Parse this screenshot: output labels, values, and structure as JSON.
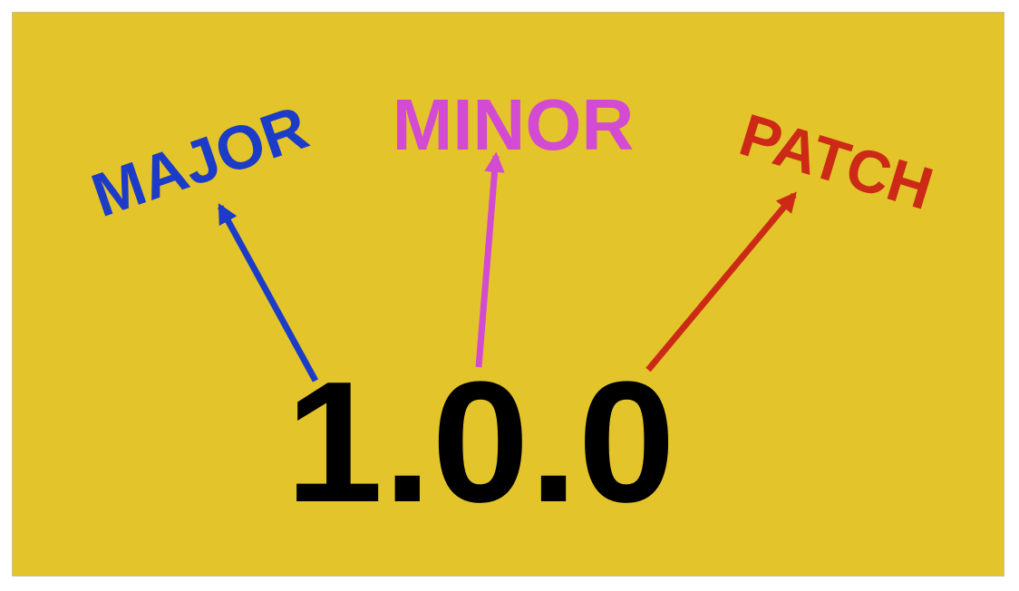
{
  "diagram": {
    "version": "1.0.0",
    "labels": {
      "major": "MAJOR",
      "minor": "MINOR",
      "patch": "PATCH"
    },
    "colors": {
      "background": "#e3c42a",
      "major": "#1c3cc8",
      "minor": "#d24bd2",
      "patch": "#cc2a16",
      "version": "#000000"
    }
  }
}
